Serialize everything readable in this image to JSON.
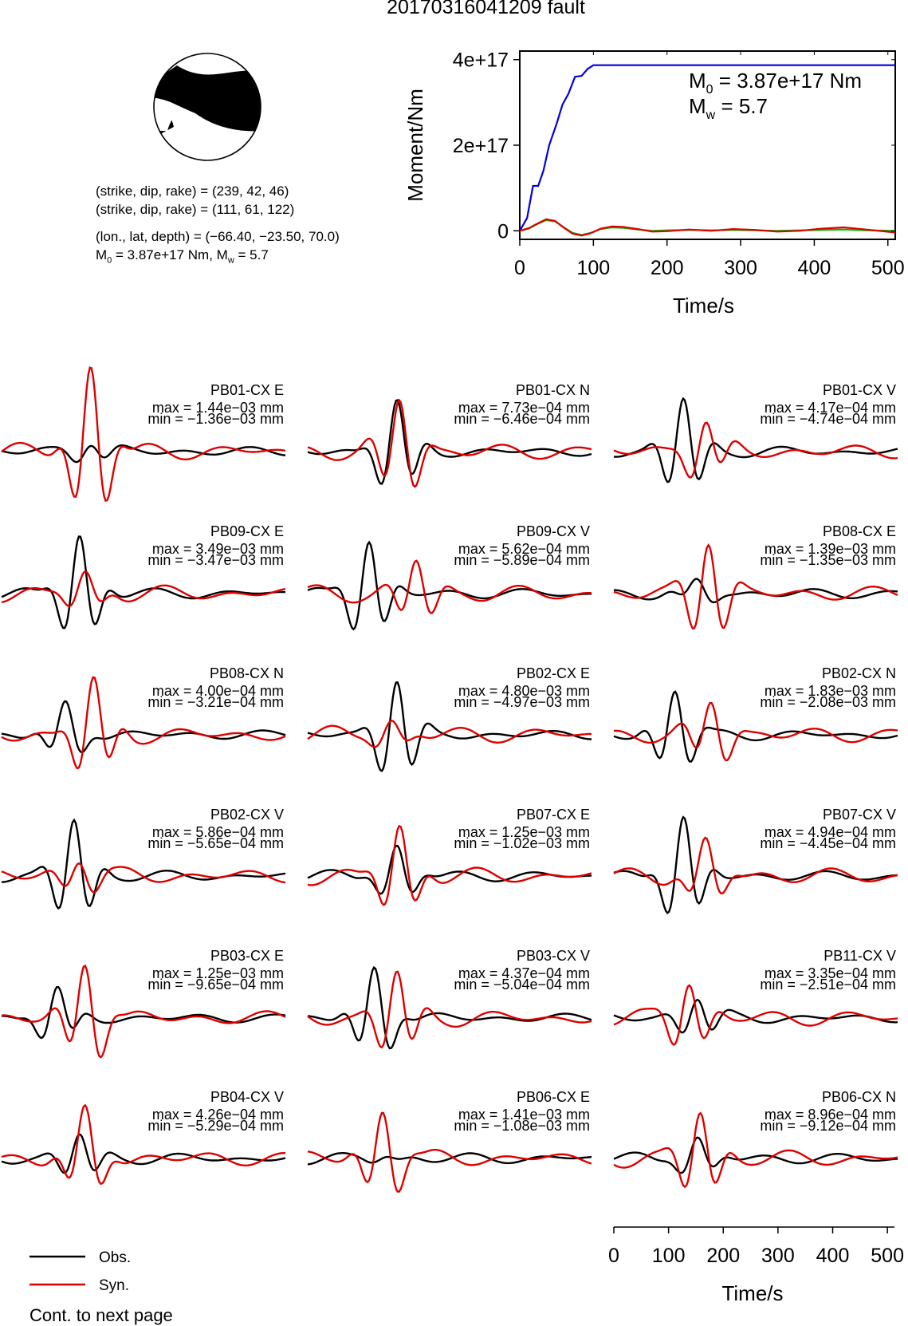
{
  "title": "20170316041209 fault",
  "focal_mechanism": {
    "plane1": "(strike, dip, rake) = (239, 42, 46)",
    "plane2": "(strike, dip, rake) = (111, 61, 122)",
    "location": "(lon., lat, depth) = (−66.40, −23.50, 70.0)",
    "moment_prefix": "M",
    "moment_sub": "0",
    "moment_mid": " = 3.87e+17 Nm, M",
    "moment_sub2": "w",
    "moment_suffix": " = 5.7"
  },
  "colors": {
    "observed": "#000000",
    "synthetic": "#dd0000",
    "moment_total": "#0000dd",
    "rate_green": "#00bb00"
  },
  "chart_data": [
    {
      "type": "line",
      "xlabel": "Time/s",
      "ylabel": "Moment/Nm",
      "xlim": [
        0,
        510
      ],
      "ylim": [
        -2e+16,
        4.2e+17
      ],
      "xticks": [
        0,
        100,
        200,
        300,
        400,
        500
      ],
      "yticks": [
        0,
        2e+17,
        4e+17
      ],
      "ytick_labels": [
        "0",
        "2e+17",
        "4e+17"
      ],
      "annotation_m0": {
        "sym": "M",
        "sub": "0",
        "text": " = 3.87e+17 Nm"
      },
      "annotation_mw": {
        "sym": "M",
        "sub": "w",
        "text": " = 5.7"
      },
      "series": [
        {
          "color": "#0000dd",
          "x": [
            0,
            10,
            18,
            25,
            32,
            40,
            50,
            58,
            66,
            75,
            84,
            92,
            100,
            510
          ],
          "y": [
            0,
            3e+16,
            1.05e+17,
            1.05e+17,
            1.4e+17,
            2e+17,
            2.5e+17,
            2.95e+17,
            3.2e+17,
            3.6e+17,
            3.62e+17,
            3.78e+17,
            3.87e+17,
            3.87e+17
          ]
        },
        {
          "color": "#00bb00",
          "x": [
            0,
            12,
            24,
            36,
            48,
            60,
            72,
            84,
            96,
            110,
            125,
            140,
            160,
            180,
            200,
            230,
            260,
            290,
            320,
            350,
            380,
            410,
            440,
            470,
            510
          ],
          "y": [
            0,
            5000000000000000.0,
            1.6e+16,
            2.5e+16,
            2.2e+16,
            8000000000000000.0,
            -5000000000000000.0,
            -1e+16,
            -5000000000000000.0,
            4000000000000000.0,
            8000000000000000.0,
            7000000000000000.0,
            3000000000000000.0,
            0.0,
            1000000000000000.0,
            2000000000000000.0,
            1000000000000000.0,
            2000000000000000.0,
            1000000000000000.0,
            0.0,
            1000000000000000.0,
            2000000000000000.0,
            3000000000000000.0,
            1000000000000000.0,
            0.0
          ]
        },
        {
          "color": "#dd0000",
          "x": [
            0,
            12,
            24,
            36,
            48,
            60,
            72,
            84,
            96,
            110,
            125,
            140,
            160,
            180,
            200,
            230,
            260,
            290,
            320,
            350,
            380,
            410,
            440,
            470,
            510
          ],
          "y": [
            0,
            6000000000000000.0,
            1.7e+16,
            2.7e+16,
            2.3e+16,
            7000000000000000.0,
            -7000000000000000.0,
            -1.1e+16,
            -6000000000000000.0,
            5000000000000000.0,
            1e+16,
            9000000000000000.0,
            4000000000000000.0,
            -2000000000000000.0,
            -1000000000000000.0,
            3000000000000000.0,
            0.0,
            4000000000000000.0,
            2000000000000000.0,
            -2000000000000000.0,
            0.0,
            5000000000000000.0,
            8000000000000000.0,
            3000000000000000.0,
            -4000000000000000.0
          ]
        }
      ]
    },
    {
      "type": "line",
      "xlabel": "Time/s",
      "xlim": [
        0,
        510
      ],
      "xticks": [
        0,
        100,
        200,
        300,
        400,
        500
      ],
      "legend": {
        "position": "bottom-left",
        "entries": [
          "Obs.",
          "Syn."
        ]
      },
      "traces": [
        {
          "label": "PB01-CX E",
          "max": "max = 1.44e−03 mm",
          "min": "min = −1.36e−03 mm",
          "obs_amp": 0.35,
          "syn_amp": 2.6,
          "obs_peak": 160,
          "syn_peak": 160
        },
        {
          "label": "PB01-CX N",
          "max": "max = 7.73e−04 mm",
          "min": "min = −6.46e−04 mm",
          "obs_amp": 1.6,
          "syn_amp": 1.7,
          "obs_peak": 160,
          "syn_peak": 165
        },
        {
          "label": "PB01-CX V",
          "max": "max = 4.17e−04 mm",
          "min": "min = −4.74e−04 mm",
          "obs_amp": 1.7,
          "syn_amp": 1.0,
          "obs_peak": 125,
          "syn_peak": 165
        },
        {
          "label": "PB09-CX E",
          "max": "max = 3.49e−03 mm",
          "min": "min = −3.47e−03 mm",
          "obs_amp": 1.8,
          "syn_amp": 0.6,
          "obs_peak": 140,
          "syn_peak": 150
        },
        {
          "label": "PB09-CX V",
          "max": "max = 5.62e−04 mm",
          "min": "min = −5.89e−04 mm",
          "obs_amp": 1.7,
          "syn_amp": 1.1,
          "obs_peak": 110,
          "syn_peak": 195
        },
        {
          "label": "PB08-CX E",
          "max": "max = 1.39e−03 mm",
          "min": "min = −1.35e−03 mm",
          "obs_amp": 0.35,
          "syn_amp": 1.8,
          "obs_peak": 150,
          "syn_peak": 170
        },
        {
          "label": "PB08-CX N",
          "max": "max = 4.00e−04 mm",
          "min": "min = −3.21e−04 mm",
          "obs_amp": 0.9,
          "syn_amp": 1.7,
          "obs_peak": 115,
          "syn_peak": 165
        },
        {
          "label": "PB02-CX E",
          "max": "max = 4.80e−03 mm",
          "min": "min = −4.97e−03 mm",
          "obs_amp": 1.8,
          "syn_amp": 0.4,
          "obs_peak": 160,
          "syn_peak": 150
        },
        {
          "label": "PB02-CX N",
          "max": "max = 1.83e−03 mm",
          "min": "min = −2.08e−03 mm",
          "obs_amp": 1.4,
          "syn_amp": 1.1,
          "obs_peak": 110,
          "syn_peak": 175
        },
        {
          "label": "PB02-CX V",
          "max": "max = 5.86e−04 mm",
          "min": "min = −5.65e−04 mm",
          "obs_amp": 1.8,
          "syn_amp": 0.6,
          "obs_peak": 130,
          "syn_peak": 140
        },
        {
          "label": "PB07-CX E",
          "max": "max = 1.25e−03 mm",
          "min": "min = −1.02e−03 mm",
          "obs_amp": 0.9,
          "syn_amp": 1.5,
          "obs_peak": 160,
          "syn_peak": 165
        },
        {
          "label": "PB07-CX V",
          "max": "max = 4.94e−04 mm",
          "min": "min = −4.45e−04 mm",
          "obs_amp": 1.8,
          "syn_amp": 1.0,
          "obs_peak": 125,
          "syn_peak": 165
        },
        {
          "label": "PB03-CX E",
          "max": "max = 1.25e−03 mm",
          "min": "min = −9.65e−04 mm",
          "obs_amp": 0.9,
          "syn_amp": 1.7,
          "obs_peak": 100,
          "syn_peak": 150
        },
        {
          "label": "PB03-CX V",
          "max": "max = 4.37e−04 mm",
          "min": "min = −5.04e−04 mm",
          "obs_amp": 1.5,
          "syn_amp": 1.5,
          "obs_peak": 120,
          "syn_peak": 160
        },
        {
          "label": "PB11-CX V",
          "max": "max = 3.35e−04 mm",
          "min": "min = −2.51e−04 mm",
          "obs_amp": 0.7,
          "syn_amp": 1.2,
          "obs_peak": 150,
          "syn_peak": 135
        },
        {
          "label": "PB04-CX V",
          "max": "max = 4.26e−04 mm",
          "min": "min = −5.29e−04 mm",
          "obs_amp": 0.8,
          "syn_amp": 1.4,
          "obs_peak": 140,
          "syn_peak": 150
        },
        {
          "label": "PB06-CX E",
          "max": "max = 1.41e−03 mm",
          "min": "min = −1.08e−03 mm",
          "obs_amp": 0.1,
          "syn_amp": 1.5,
          "obs_peak": 140,
          "syn_peak": 135
        },
        {
          "label": "PB06-CX N",
          "max": "max = 8.96e−04 mm",
          "min": "min = −9.12e−04 mm",
          "obs_amp": 0.6,
          "syn_amp": 1.5,
          "obs_peak": 150,
          "syn_peak": 155
        }
      ]
    }
  ],
  "legend_obs": "Obs.",
  "legend_syn": "Syn.",
  "footer": "Cont. to next page"
}
